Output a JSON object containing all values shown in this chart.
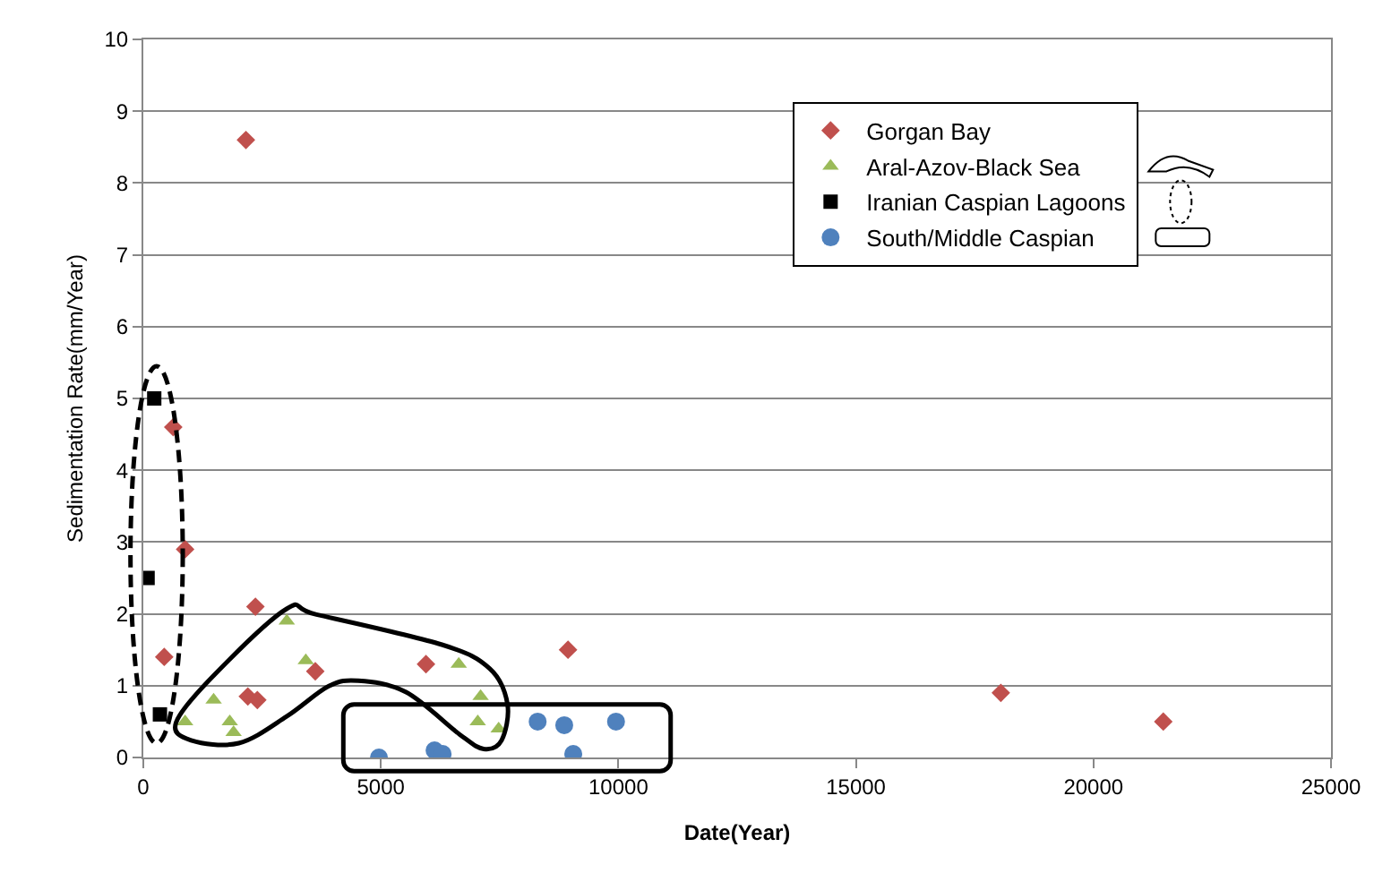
{
  "chart_data": {
    "type": "scatter",
    "xlabel": "Date(Year)",
    "ylabel": "Sedimentation Rate(mm/Year)",
    "xlim": [
      0,
      25000
    ],
    "xticks": [
      0,
      5000,
      10000,
      15000,
      20000,
      25000
    ],
    "ylim": [
      0,
      10
    ],
    "yticks": [
      0,
      1,
      2,
      3,
      4,
      5,
      6,
      7,
      8,
      9,
      10
    ],
    "grid": "y",
    "legend": "top right",
    "series": [
      {
        "name": "Gorgan Bay",
        "color": "#c0504d",
        "marker": "diamond",
        "x": [
          2160,
          630,
          880,
          2360,
          440,
          2200,
          2400,
          3620,
          5950,
          8940,
          18050,
          21470
        ],
        "values": [
          8.6,
          4.6,
          2.9,
          2.1,
          1.4,
          0.85,
          0.8,
          1.2,
          1.3,
          1.5,
          0.9,
          0.5
        ]
      },
      {
        "name": "Aral-Azov-Black Sea",
        "color": "#9bbb59",
        "marker": "triangle",
        "x": [
          3020,
          3420,
          1480,
          880,
          1820,
          1900,
          6640,
          7100,
          7040,
          7480
        ],
        "values": [
          1.9,
          1.35,
          0.8,
          0.5,
          0.5,
          0.35,
          1.3,
          0.85,
          0.5,
          0.4
        ]
      },
      {
        "name": "Iranian Caspian Lagoons",
        "color": "#000000",
        "marker": "square",
        "x": [
          230,
          90,
          350
        ],
        "values": [
          5.0,
          2.5,
          0.6
        ]
      },
      {
        "name": "South/Middle Caspian",
        "color": "#4f81bd",
        "marker": "circle",
        "x": [
          4960,
          6130,
          6300,
          8300,
          8860,
          9050,
          9950
        ],
        "values": [
          0.0,
          0.1,
          0.05,
          0.5,
          0.45,
          0.05,
          0.5
        ]
      }
    ]
  }
}
